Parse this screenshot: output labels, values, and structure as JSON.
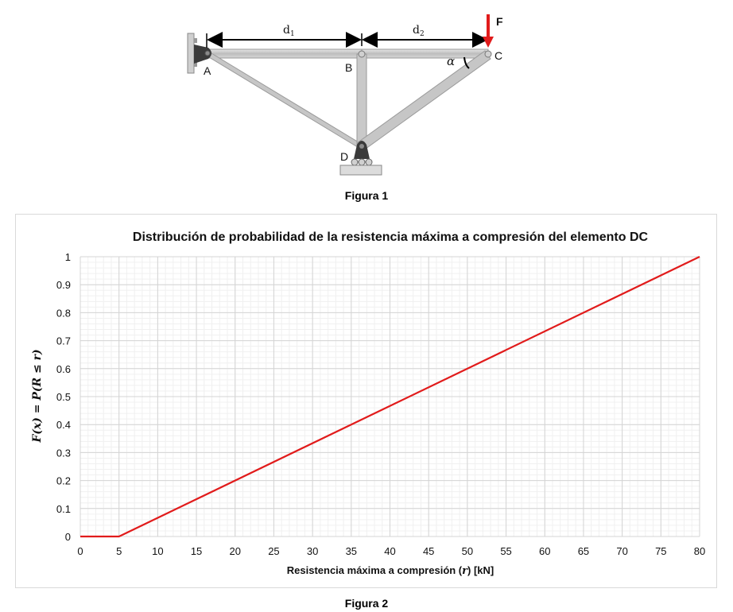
{
  "figure1": {
    "caption": "Figura 1",
    "labels": {
      "A": "A",
      "B": "B",
      "C": "C",
      "D": "D",
      "F": "F",
      "alpha": "α",
      "d1": "d",
      "d1_sub": "1",
      "d2": "d",
      "d2_sub": "2"
    },
    "colors": {
      "member": "#c9c9c9",
      "force": "#e11b1b",
      "support": "#3a3a3a"
    }
  },
  "figure2": {
    "caption": "Figura 2"
  },
  "chart_data": {
    "type": "line",
    "title": "Distribución de probabilidad de la resistencia máxima a compresión del elemento DC",
    "xlabel": "Resistencia máxima a compresión (r) [kN]",
    "xlabel_parts": [
      "Resistencia máxima a compresión (",
      "r",
      ") [kN]"
    ],
    "ylabel": "F(x) = P(R ≤ r)",
    "xlim": [
      0,
      80
    ],
    "ylim": [
      0,
      1
    ],
    "xticks": [
      0,
      5,
      10,
      15,
      20,
      25,
      30,
      35,
      40,
      45,
      50,
      55,
      60,
      65,
      70,
      75,
      80
    ],
    "yticks": [
      0,
      0.1,
      0.2,
      0.3,
      0.4,
      0.5,
      0.6,
      0.7,
      0.8,
      0.9,
      1
    ],
    "minor_grid": true,
    "grid": true,
    "series": [
      {
        "color": "#e11b1b",
        "x": [
          0,
          5,
          80
        ],
        "y": [
          0,
          0,
          1
        ]
      }
    ]
  }
}
